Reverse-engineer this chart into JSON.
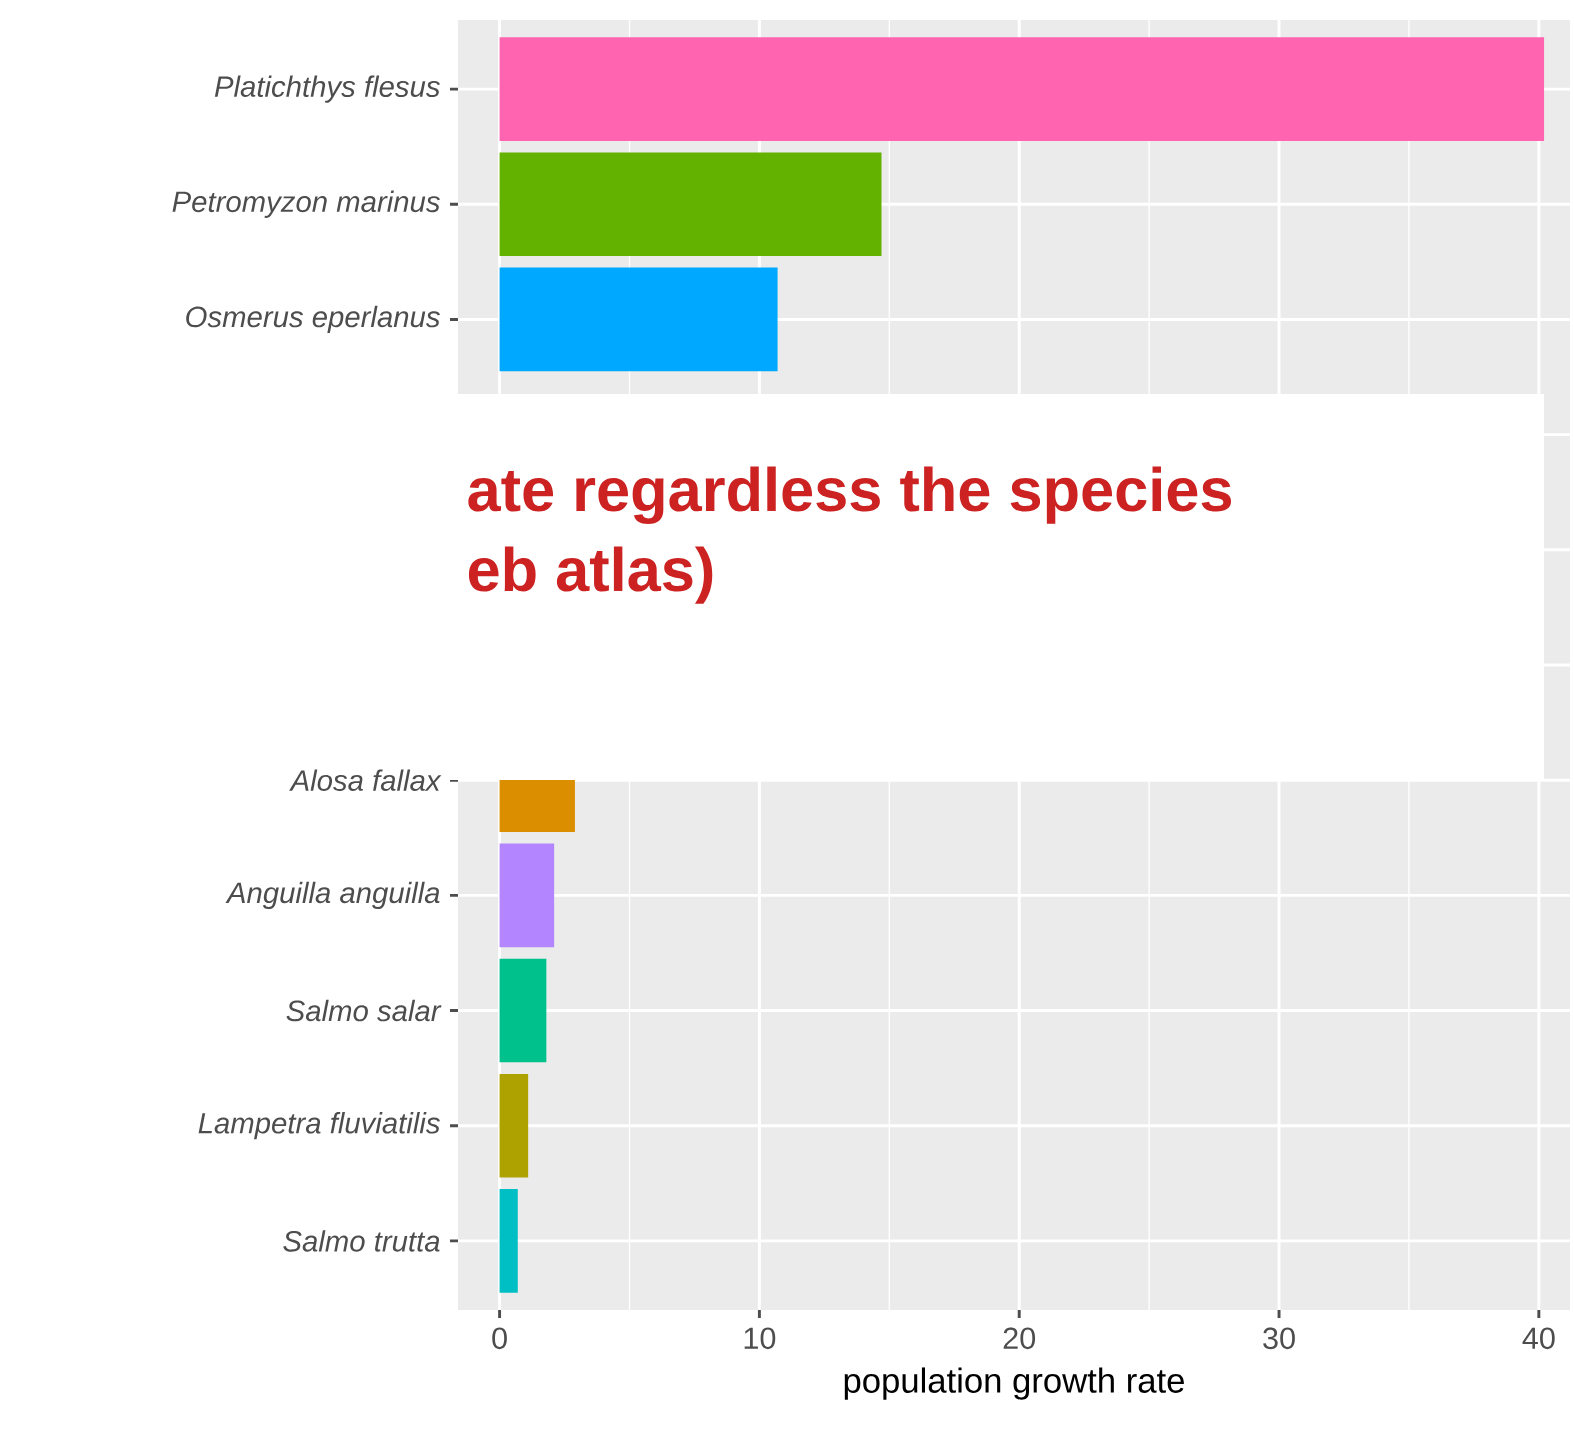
{
  "chart_data": {
    "type": "bar",
    "orientation": "horizontal",
    "xlabel": "population growth rate",
    "categories": [
      "Platichthys flesus",
      "Petromyzon marinus",
      "Osmerus eperlanus",
      null,
      null,
      null,
      "Alosa fallax",
      "Anguilla anguilla",
      "Salmo salar",
      "Lampetra fluviatilis",
      "Salmo trutta"
    ],
    "values": [
      40.2,
      14.7,
      10.7,
      null,
      null,
      null,
      2.9,
      2.1,
      1.8,
      1.1,
      0.7
    ],
    "colors": [
      "#ff64b0",
      "#64b200",
      "#00a9ff",
      null,
      null,
      null,
      "#db8e00",
      "#b385ff",
      "#00c08b",
      "#aea200",
      "#00bfc4"
    ],
    "xlim": [
      -1.6,
      41.2
    ],
    "xticks": [
      0,
      10,
      20,
      30,
      40
    ],
    "grid": true,
    "annotations": [
      "ate regardless the species",
      "eb atlas)"
    ]
  }
}
